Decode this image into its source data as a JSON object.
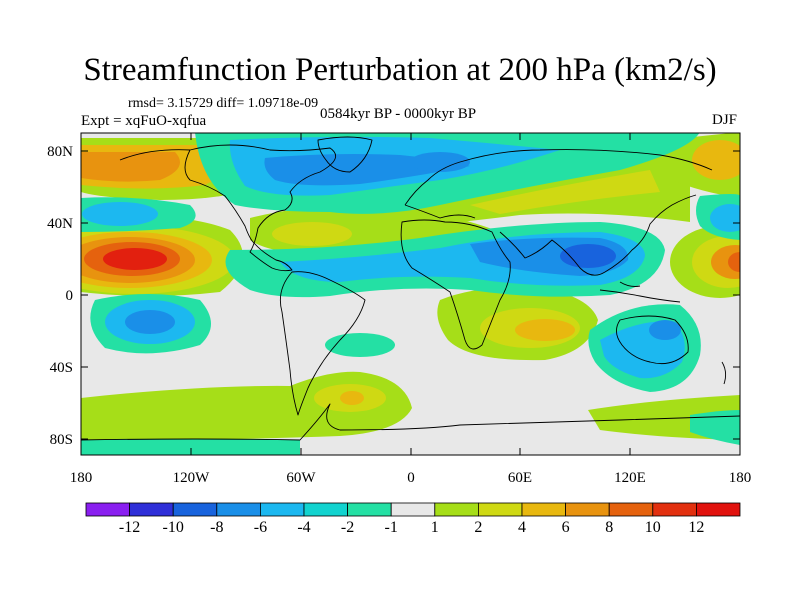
{
  "title": "Streamfunction Perturbation at 200 hPa (km2/s)",
  "stats_line": "rmsd= 3.15729 diff= 1.09718e-09",
  "expt_line": "Expt = xqFuO-xqfua",
  "period_line": "0584kyr BP - 0000kyr BP",
  "season": "DJF",
  "map": {
    "lat_ticks": [
      "80N",
      "40N",
      "0",
      "40S",
      "80S"
    ],
    "lon_ticks": [
      "180",
      "120W",
      "60W",
      "0",
      "60E",
      "120E",
      "180"
    ]
  },
  "colorbar": {
    "labels": [
      "-12",
      "-10",
      "-8",
      "-6",
      "-4",
      "-2",
      "-1",
      "1",
      "2",
      "4",
      "6",
      "8",
      "10",
      "12"
    ],
    "colors": [
      "#8a1ff0",
      "#2f2fd8",
      "#1863dd",
      "#1a8fe8",
      "#1cb8f0",
      "#12d3cf",
      "#24e0a4",
      "#e8e8e8",
      "#a6de18",
      "#cfd913",
      "#e8b80f",
      "#e8930f",
      "#e5620e",
      "#e2300f",
      "#e1120e"
    ]
  },
  "color_levels": {
    "red": "#e2200f",
    "orange_red": "#e5620e",
    "orange": "#e8930f",
    "amber": "#e8b80f",
    "yellow": "#cfd913",
    "lime": "#a6de18",
    "neutral": "#e8e8e8",
    "mint": "#24e0a4",
    "cyan": "#1cb8f0",
    "sky": "#1a8fe8",
    "blue": "#1863dd"
  }
}
